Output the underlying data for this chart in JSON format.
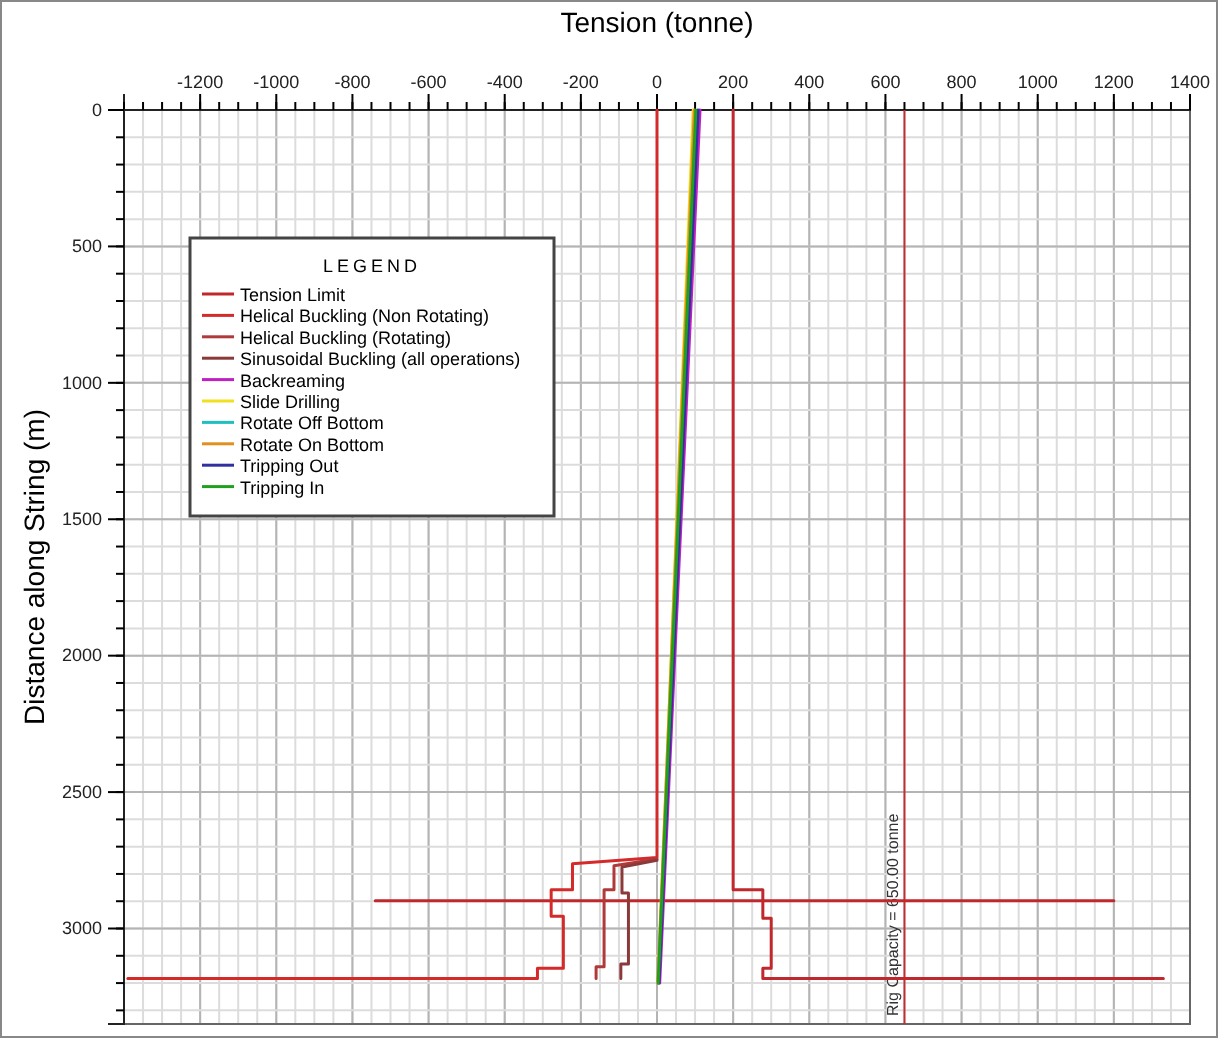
{
  "chart_data": {
    "type": "line",
    "xlabel": "Tension (tonne)",
    "ylabel": "Distance along String (m)",
    "legend_title": "LEGEND",
    "xlim": [
      -1400,
      1400
    ],
    "xticks": [
      -1200,
      -1000,
      -800,
      -600,
      -400,
      -200,
      0,
      200,
      400,
      600,
      800,
      1000,
      1200,
      1400
    ],
    "ylim": [
      3350,
      0
    ],
    "yticks": [
      0,
      500,
      1000,
      1500,
      2000,
      2500,
      3000
    ],
    "grid": true,
    "legend": "top left",
    "ref_lines": [
      {
        "axis": "x",
        "value": 650,
        "label": "Rig Capacity = 650.00 tonne",
        "color": "#c03030"
      }
    ],
    "series": [
      {
        "name": "Tension Limit",
        "color": "#c0282d",
        "x": [
          200,
          200,
          278,
          278,
          300,
          300,
          278,
          278,
          1330,
          null,
          -740,
          1200
        ],
        "values": [
          0,
          2858,
          2858,
          2962,
          2962,
          3146,
          3146,
          3183,
          3183,
          null,
          2898,
          2898
        ]
      },
      {
        "name": "Helical Buckling (Non Rotating)",
        "color": "#d42a2a",
        "x": [
          0,
          0,
          -222,
          -222,
          -278,
          -278,
          -246,
          -246,
          -314,
          -314,
          -1390
        ],
        "values": [
          0,
          2740,
          2763,
          2858,
          2858,
          2955,
          2955,
          3146,
          3146,
          3183,
          3183
        ]
      },
      {
        "name": "Helical Buckling (Rotating)",
        "color": "#b03a3a",
        "x": [
          0,
          -113,
          -113,
          -139,
          -139,
          -160,
          -160
        ],
        "values": [
          2745,
          2770,
          2858,
          2858,
          3140,
          3140,
          3183
        ]
      },
      {
        "name": "Sinusoidal Buckling (all operations)",
        "color": "#8b3a3a",
        "x": [
          0,
          -92,
          -92,
          -75,
          -75,
          -95,
          -95
        ],
        "values": [
          2750,
          2775,
          2870,
          2870,
          3130,
          3130,
          3183
        ]
      },
      {
        "name": "Backreaming",
        "color": "#c020c0",
        "x": [
          113,
          7
        ],
        "values": [
          0,
          3200
        ]
      },
      {
        "name": "Slide Drilling",
        "color": "#f0e020",
        "x": [
          95,
          3
        ],
        "values": [
          0,
          3200
        ]
      },
      {
        "name": "Rotate Off Bottom",
        "color": "#20c0c0",
        "x": [
          null,
          null
        ],
        "values": [
          null,
          null
        ]
      },
      {
        "name": "Rotate On Bottom",
        "color": "#e09020",
        "x": [
          98,
          2
        ],
        "values": [
          0,
          3200
        ]
      },
      {
        "name": "Tripping Out",
        "color": "#3030a0",
        "x": [
          108,
          5
        ],
        "values": [
          0,
          3200
        ]
      },
      {
        "name": "Tripping In",
        "color": "#20a020",
        "x": [
          102,
          3
        ],
        "values": [
          0,
          3200
        ]
      }
    ]
  }
}
